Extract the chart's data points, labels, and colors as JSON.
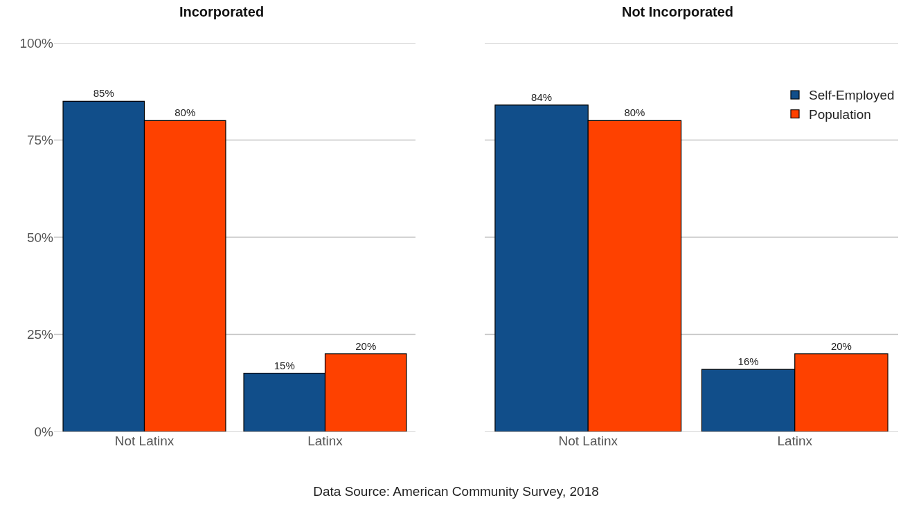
{
  "chart_data": [
    {
      "type": "bar",
      "title": "Incorporated",
      "categories": [
        "Not Latinx",
        "Latinx"
      ],
      "series": [
        {
          "color": "#114e8a",
          "values": [
            85,
            15
          ],
          "value_labels": [
            "85%",
            "15%"
          ]
        },
        {
          "color": "#fe4100",
          "values": [
            80,
            20
          ],
          "value_labels": [
            "80%",
            "20%"
          ]
        }
      ],
      "ylim": [
        0,
        100
      ],
      "yticks": [
        {
          "value": 0,
          "label": "0%"
        },
        {
          "value": 25,
          "label": "25%"
        },
        {
          "value": 50,
          "label": "50%"
        },
        {
          "value": 75,
          "label": "75%"
        },
        {
          "value": 100,
          "label": "100%"
        }
      ],
      "grid": "y",
      "annotations": [
        "Data Source: American Community Survey, 2018"
      ]
    },
    {
      "type": "bar",
      "title": "Not Incorporated",
      "categories": [
        "Not Latinx",
        "Latinx"
      ],
      "series": [
        {
          "name": "Self-Employed",
          "color": "#114e8a",
          "values": [
            84,
            16
          ],
          "value_labels": [
            "84%",
            "16%"
          ]
        },
        {
          "name": "Population",
          "color": "#fe4100",
          "values": [
            80,
            20
          ],
          "value_labels": [
            "80%",
            "20%"
          ]
        }
      ],
      "ylim": [
        0,
        100
      ],
      "yticks": [
        0,
        25,
        50,
        75,
        100
      ],
      "grid": "y",
      "legend": "top right",
      "tick_labels": "x"
    }
  ]
}
